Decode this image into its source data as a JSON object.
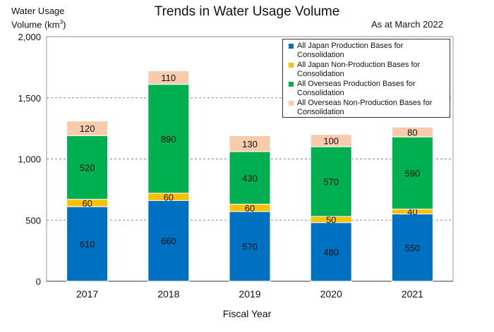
{
  "header": {
    "title": "Trends in Water Usage Volume",
    "as_of": "As at March 2022",
    "ylabel_line1": "Water Usage",
    "ylabel_line2": "Volume (km",
    "ylabel_sup": "3",
    "ylabel_close": ")"
  },
  "chart_data": {
    "type": "bar",
    "stacked": true,
    "title": "Trends in Water Usage Volume",
    "subtitle": "As at March 2022",
    "xlabel": "Fiscal Year",
    "ylabel": "Water Usage Volume (km3)",
    "ylim": [
      0,
      2000
    ],
    "yticks": [
      0,
      500,
      1000,
      1500,
      2000
    ],
    "ytick_labels": [
      "0",
      "500",
      "1,000",
      "1,500",
      "2,000"
    ],
    "grid": true,
    "legend_position": "top-right",
    "categories": [
      "2017",
      "2018",
      "2019",
      "2020",
      "2021"
    ],
    "series": [
      {
        "name": "All Japan Production Bases for Consolidation",
        "color": "#0070C0",
        "values": [
          610,
          660,
          570,
          480,
          550
        ]
      },
      {
        "name": "All Japan Non-Production Bases for Consolidation",
        "color": "#FFC000",
        "values": [
          60,
          60,
          60,
          50,
          40
        ]
      },
      {
        "name": "All Overseas Production Bases for Consolidation",
        "color": "#00B050",
        "values": [
          520,
          890,
          430,
          570,
          590
        ]
      },
      {
        "name": "All Overseas Non-Production Bases for Consolidation",
        "color": "#F8CBAD",
        "values": [
          120,
          110,
          130,
          100,
          80
        ]
      }
    ]
  }
}
